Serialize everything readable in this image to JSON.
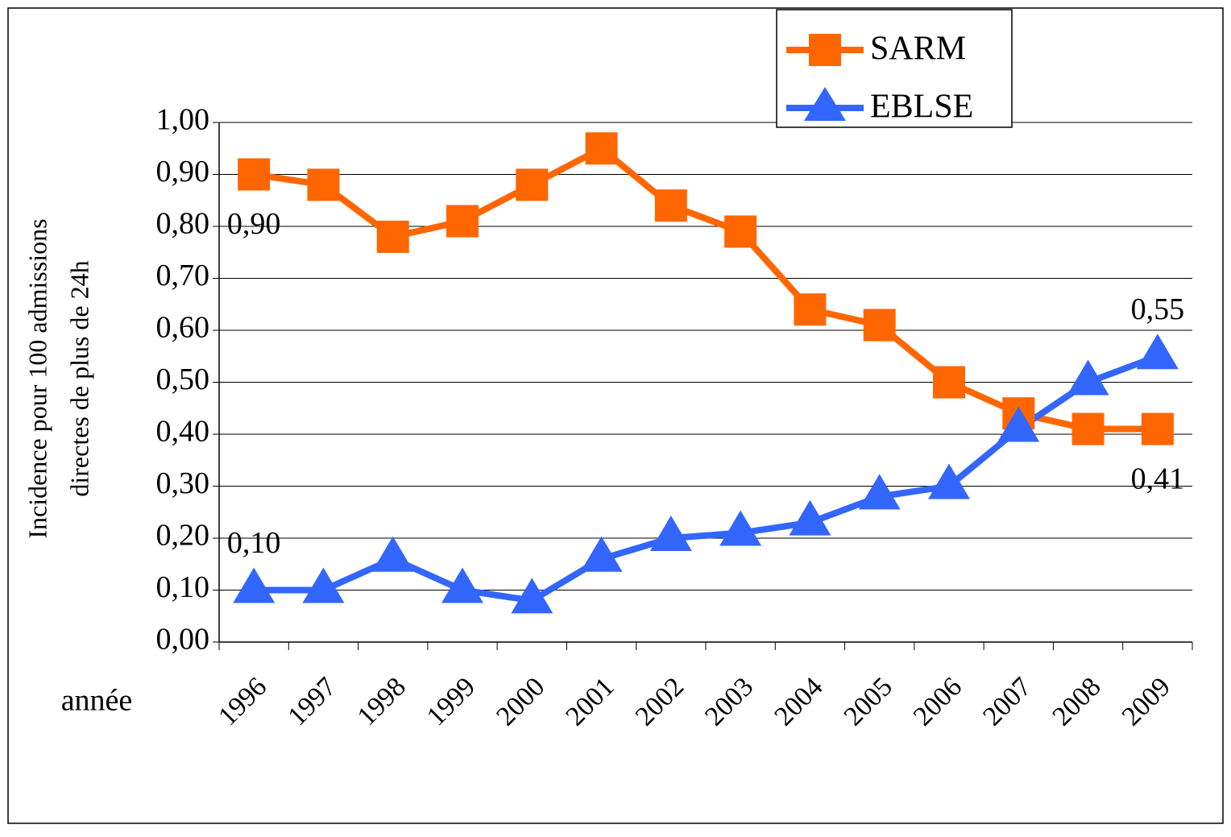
{
  "chart_data": {
    "type": "line",
    "ylabel": [
      "Incidence pour 100 admissions",
      "directes de plus de 24h"
    ],
    "xlabel": "année",
    "categories": [
      "1996",
      "1997",
      "1998",
      "1999",
      "2000",
      "2001",
      "2002",
      "2003",
      "2004",
      "2005",
      "2006",
      "2007",
      "2008",
      "2009"
    ],
    "series": [
      {
        "name": "SARM",
        "color": "#ff6600",
        "marker": "square",
        "values": [
          0.9,
          0.88,
          0.78,
          0.81,
          0.88,
          0.95,
          0.84,
          0.79,
          0.64,
          0.61,
          0.5,
          0.44,
          0.41,
          0.41
        ],
        "value_labels": [
          "0,90",
          null,
          null,
          null,
          null,
          null,
          null,
          null,
          null,
          null,
          null,
          null,
          null,
          "0,41"
        ]
      },
      {
        "name": "EBLSE",
        "color": "#3366ff",
        "marker": "triangle",
        "values": [
          0.1,
          0.1,
          0.16,
          0.1,
          0.08,
          0.16,
          0.2,
          0.21,
          0.23,
          0.28,
          0.3,
          0.41,
          0.5,
          0.55
        ],
        "value_labels": [
          "0,10",
          null,
          null,
          null,
          null,
          null,
          null,
          null,
          null,
          null,
          null,
          null,
          null,
          "0,55"
        ]
      }
    ],
    "ylim": [
      0,
      1
    ],
    "yticks": [
      {
        "value": 0,
        "label": "0,00"
      },
      {
        "value": 0.1,
        "label": "0,10"
      },
      {
        "value": 0.2,
        "label": "0,20"
      },
      {
        "value": 0.3,
        "label": "0,30"
      },
      {
        "value": 0.4,
        "label": "0,40"
      },
      {
        "value": 0.5,
        "label": "0,50"
      },
      {
        "value": 0.6,
        "label": "0,60"
      },
      {
        "value": 0.7,
        "label": "0,70"
      },
      {
        "value": 0.8,
        "label": "0,80"
      },
      {
        "value": 0.9,
        "label": "0,90"
      },
      {
        "value": 1,
        "label": "1,00"
      }
    ],
    "grid": true,
    "legend": "top-right"
  }
}
